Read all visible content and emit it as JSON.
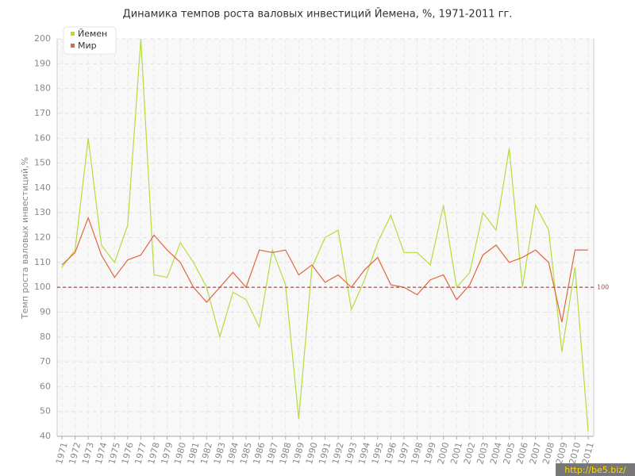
{
  "chart_data": {
    "type": "line",
    "title": "Динамика темпов роста валовых инвестиций Йемена, %, 1971-2011 гг.",
    "y_label": "Темп роста валовых инвестиций,%",
    "categories": [
      "1971",
      "1972",
      "1973",
      "1974",
      "1975",
      "1976",
      "1977",
      "1978",
      "1979",
      "1980",
      "1981",
      "1982",
      "1983",
      "1984",
      "1985",
      "1986",
      "1987",
      "1988",
      "1989",
      "1990",
      "1991",
      "1992",
      "1993",
      "1994",
      "1995",
      "1996",
      "1997",
      "1998",
      "1999",
      "2000",
      "2001",
      "2002",
      "2003",
      "2004",
      "2005",
      "2006",
      "2007",
      "2008",
      "2009",
      "2010",
      "2011"
    ],
    "series": [
      {
        "name": "Йемен",
        "color": "#b5dc3c",
        "values": [
          108,
          115,
          160,
          117,
          110,
          125,
          200,
          105,
          104,
          118,
          110,
          100,
          80,
          98,
          95,
          84,
          115,
          101,
          47,
          108,
          120,
          123,
          91,
          103,
          118,
          129,
          114,
          114,
          109,
          133,
          100,
          106,
          130,
          123,
          156,
          100,
          133,
          123,
          74,
          108,
          42
        ]
      },
      {
        "name": "Мир",
        "color": "#e0663a",
        "values": [
          109,
          114,
          128,
          113,
          104,
          111,
          113,
          121,
          115,
          110,
          100,
          94,
          100,
          106,
          100,
          115,
          114,
          115,
          105,
          109,
          102,
          105,
          100,
          107,
          112,
          101,
          100,
          97,
          103,
          105,
          95,
          101,
          113,
          117,
          110,
          112,
          115,
          110,
          86,
          115,
          115
        ]
      }
    ],
    "reference_line": 100,
    "ylim": [
      40,
      200
    ],
    "yticks": [
      40,
      50,
      60,
      70,
      80,
      90,
      100,
      110,
      120,
      130,
      140,
      150,
      160,
      170,
      180,
      190,
      200
    ],
    "grid": true,
    "legend": "top-left"
  },
  "watermark": "http://be5.biz/"
}
